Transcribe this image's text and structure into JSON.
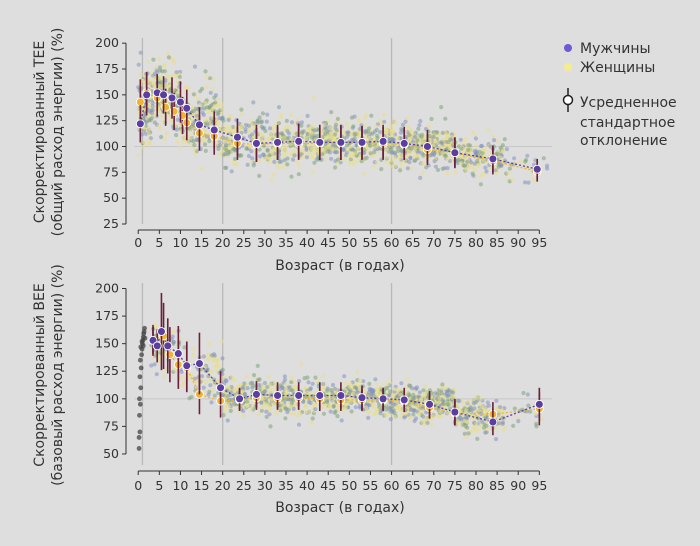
{
  "legend": {
    "men": "Мужчины",
    "women": "Женщины",
    "mean_sd_line1": "Усредненное",
    "mean_sd_line2": "стандартное",
    "mean_sd_line3": "отклонение"
  },
  "colors": {
    "men_dot": "#6b5bd6",
    "women_dot": "#f5ec8c",
    "men_mean_fill": "#5a3fa0",
    "women_mean_fill": "#f2b233",
    "error_bar": "#6a1f3a",
    "men_scatter": "#8494c0",
    "women_scatter": "#e9df8a",
    "mixed_scatter": "#7fa27a",
    "infant_scatter": "#444444",
    "grid_vertical": "#b9b9b9",
    "reference_line": "#c8c8c8"
  },
  "chart_data": [
    {
      "type": "scatter",
      "ylabel_line1": "Скорректированный TEE",
      "ylabel_line2": "(общий расход энергии) (%)",
      "xlabel": "Возраст (в годах)",
      "xlim": [
        -1,
        98
      ],
      "ylim": [
        25,
        205
      ],
      "xticks": [
        0,
        5,
        10,
        15,
        20,
        25,
        30,
        35,
        40,
        45,
        50,
        55,
        60,
        65,
        70,
        75,
        80,
        85,
        90,
        95
      ],
      "yticks": [
        25,
        50,
        75,
        100,
        125,
        150,
        175,
        200
      ],
      "vlines": [
        1,
        20,
        60
      ],
      "hline": 100,
      "men_means": [
        {
          "x": 0.5,
          "y": 122,
          "sd": 18
        },
        {
          "x": 2,
          "y": 150,
          "sd": 20
        },
        {
          "x": 4.5,
          "y": 152,
          "sd": 18
        },
        {
          "x": 6,
          "y": 150,
          "sd": 18
        },
        {
          "x": 8,
          "y": 147,
          "sd": 20
        },
        {
          "x": 10,
          "y": 143,
          "sd": 20
        },
        {
          "x": 11.5,
          "y": 137,
          "sd": 18
        },
        {
          "x": 14.5,
          "y": 121,
          "sd": 17
        },
        {
          "x": 18,
          "y": 116,
          "sd": 18
        },
        {
          "x": 23.5,
          "y": 109,
          "sd": 18
        },
        {
          "x": 28,
          "y": 103,
          "sd": 18
        },
        {
          "x": 33,
          "y": 104,
          "sd": 17
        },
        {
          "x": 38,
          "y": 105,
          "sd": 17
        },
        {
          "x": 43,
          "y": 104,
          "sd": 17
        },
        {
          "x": 48,
          "y": 104,
          "sd": 17
        },
        {
          "x": 53,
          "y": 104,
          "sd": 16
        },
        {
          "x": 58,
          "y": 105,
          "sd": 16
        },
        {
          "x": 63,
          "y": 103,
          "sd": 16
        },
        {
          "x": 68.5,
          "y": 100,
          "sd": 16
        },
        {
          "x": 75,
          "y": 94,
          "sd": 15
        },
        {
          "x": 84,
          "y": 88,
          "sd": 13
        },
        {
          "x": 94.5,
          "y": 78,
          "sd": 10
        }
      ],
      "women_means": [
        {
          "x": 0.5,
          "y": 143,
          "sd": 22
        },
        {
          "x": 2,
          "y": 152,
          "sd": 20
        },
        {
          "x": 4.5,
          "y": 147,
          "sd": 18
        },
        {
          "x": 6.5,
          "y": 138,
          "sd": 18
        },
        {
          "x": 8.5,
          "y": 134,
          "sd": 18
        },
        {
          "x": 10.5,
          "y": 130,
          "sd": 18
        },
        {
          "x": 11.5,
          "y": 123,
          "sd": 17
        },
        {
          "x": 14.5,
          "y": 113,
          "sd": 17
        },
        {
          "x": 18,
          "y": 110,
          "sd": 18
        },
        {
          "x": 23.5,
          "y": 103,
          "sd": 16
        },
        {
          "x": 28,
          "y": 102,
          "sd": 16
        },
        {
          "x": 33,
          "y": 103,
          "sd": 16
        },
        {
          "x": 38,
          "y": 103,
          "sd": 16
        },
        {
          "x": 43,
          "y": 103,
          "sd": 16
        },
        {
          "x": 48,
          "y": 103,
          "sd": 16
        },
        {
          "x": 53,
          "y": 103,
          "sd": 16
        },
        {
          "x": 58,
          "y": 103,
          "sd": 16
        },
        {
          "x": 63,
          "y": 102,
          "sd": 15
        },
        {
          "x": 68.5,
          "y": 97,
          "sd": 15
        },
        {
          "x": 75,
          "y": 94,
          "sd": 14
        },
        {
          "x": 84,
          "y": 86,
          "sd": 13
        },
        {
          "x": 94.5,
          "y": 76,
          "sd": 10
        }
      ],
      "point_cloud": [
        {
          "x0": 0,
          "x1": 3,
          "y_center": 140,
          "y_spread": 35,
          "density": 120
        },
        {
          "x0": 3,
          "x1": 10,
          "y_center": 148,
          "y_spread": 30,
          "density": 220
        },
        {
          "x0": 10,
          "x1": 20,
          "y_center": 125,
          "y_spread": 30,
          "density": 260
        },
        {
          "x0": 20,
          "x1": 40,
          "y_center": 105,
          "y_spread": 25,
          "density": 340
        },
        {
          "x0": 40,
          "x1": 60,
          "y_center": 104,
          "y_spread": 22,
          "density": 420
        },
        {
          "x0": 60,
          "x1": 75,
          "y_center": 100,
          "y_spread": 20,
          "density": 360
        },
        {
          "x0": 75,
          "x1": 87,
          "y_center": 90,
          "y_spread": 18,
          "density": 180
        },
        {
          "x0": 87,
          "x1": 97,
          "y_center": 78,
          "y_spread": 14,
          "density": 30
        }
      ]
    },
    {
      "type": "scatter",
      "ylabel_line1": "Скорректированный BEE",
      "ylabel_line2": "(базовый расход энергии) (%)",
      "xlabel": "Возраст (в годах)",
      "xlim": [
        -1,
        98
      ],
      "ylim": [
        40,
        205
      ],
      "xticks": [
        0,
        5,
        10,
        15,
        20,
        25,
        30,
        35,
        40,
        45,
        50,
        55,
        60,
        65,
        70,
        75,
        80,
        85,
        90,
        95
      ],
      "yticks": [
        50,
        75,
        100,
        125,
        150,
        175,
        200
      ],
      "vlines": [
        1,
        20,
        60
      ],
      "hline": 100,
      "infant_points": [
        {
          "x": 0.2,
          "y": 55
        },
        {
          "x": 0.4,
          "y": 70
        },
        {
          "x": 0.3,
          "y": 85
        },
        {
          "x": 0.5,
          "y": 95
        },
        {
          "x": 0.6,
          "y": 110
        },
        {
          "x": 0.4,
          "y": 120
        },
        {
          "x": 0.7,
          "y": 128
        },
        {
          "x": 0.5,
          "y": 135
        },
        {
          "x": 0.8,
          "y": 140
        },
        {
          "x": 0.9,
          "y": 145
        },
        {
          "x": 1.0,
          "y": 150
        },
        {
          "x": 1.1,
          "y": 153
        },
        {
          "x": 1.2,
          "y": 156
        },
        {
          "x": 1.3,
          "y": 159
        },
        {
          "x": 1.4,
          "y": 161
        },
        {
          "x": 1.5,
          "y": 164
        },
        {
          "x": 0.6,
          "y": 147
        },
        {
          "x": 0.9,
          "y": 152
        },
        {
          "x": 1.2,
          "y": 148
        },
        {
          "x": 1.6,
          "y": 155
        },
        {
          "x": 0.3,
          "y": 100
        },
        {
          "x": 0.2,
          "y": 65
        }
      ],
      "men_means": [
        {
          "x": 3.5,
          "y": 153,
          "sd": 14
        },
        {
          "x": 4.5,
          "y": 148,
          "sd": 15
        },
        {
          "x": 5.5,
          "y": 161,
          "sd": 35
        },
        {
          "x": 7,
          "y": 148,
          "sd": 25
        },
        {
          "x": 9.5,
          "y": 141,
          "sd": 25
        },
        {
          "x": 11.5,
          "y": 130,
          "sd": 22
        },
        {
          "x": 14.5,
          "y": 132,
          "sd": 28
        },
        {
          "x": 19.5,
          "y": 110,
          "sd": 15
        },
        {
          "x": 24,
          "y": 100,
          "sd": 10
        },
        {
          "x": 28,
          "y": 104,
          "sd": 12
        },
        {
          "x": 33,
          "y": 103,
          "sd": 12
        },
        {
          "x": 38,
          "y": 103,
          "sd": 12
        },
        {
          "x": 43,
          "y": 103,
          "sd": 12
        },
        {
          "x": 48,
          "y": 103,
          "sd": 12
        },
        {
          "x": 53,
          "y": 101,
          "sd": 11
        },
        {
          "x": 58,
          "y": 100,
          "sd": 10
        },
        {
          "x": 63,
          "y": 99,
          "sd": 11
        },
        {
          "x": 69,
          "y": 95,
          "sd": 12
        },
        {
          "x": 75,
          "y": 88,
          "sd": 12
        },
        {
          "x": 84,
          "y": 79,
          "sd": 12
        },
        {
          "x": 95,
          "y": 95,
          "sd": 15
        }
      ],
      "women_means": [
        {
          "x": 3.5,
          "y": 153,
          "sd": 12
        },
        {
          "x": 6,
          "y": 157,
          "sd": 30
        },
        {
          "x": 7.5,
          "y": 140,
          "sd": 25
        },
        {
          "x": 9.5,
          "y": 131,
          "sd": 22
        },
        {
          "x": 11.5,
          "y": 128,
          "sd": 22
        },
        {
          "x": 14.5,
          "y": 104,
          "sd": 18
        },
        {
          "x": 19.5,
          "y": 98,
          "sd": 15
        },
        {
          "x": 24,
          "y": 99,
          "sd": 10
        },
        {
          "x": 28,
          "y": 101,
          "sd": 11
        },
        {
          "x": 33,
          "y": 101,
          "sd": 11
        },
        {
          "x": 38,
          "y": 101,
          "sd": 11
        },
        {
          "x": 43,
          "y": 100,
          "sd": 11
        },
        {
          "x": 48,
          "y": 99,
          "sd": 10
        },
        {
          "x": 53,
          "y": 99,
          "sd": 10
        },
        {
          "x": 58,
          "y": 99,
          "sd": 10
        },
        {
          "x": 63,
          "y": 98,
          "sd": 10
        },
        {
          "x": 69,
          "y": 92,
          "sd": 10
        },
        {
          "x": 75,
          "y": 87,
          "sd": 11
        },
        {
          "x": 84,
          "y": 86,
          "sd": 11
        },
        {
          "x": 95,
          "y": 91,
          "sd": 15
        }
      ],
      "point_cloud": [
        {
          "x0": 3,
          "x1": 10,
          "y_center": 148,
          "y_spread": 25,
          "density": 60
        },
        {
          "x0": 10,
          "x1": 20,
          "y_center": 120,
          "y_spread": 25,
          "density": 90
        },
        {
          "x0": 20,
          "x1": 40,
          "y_center": 102,
          "y_spread": 18,
          "density": 340
        },
        {
          "x0": 40,
          "x1": 60,
          "y_center": 101,
          "y_spread": 16,
          "density": 380
        },
        {
          "x0": 60,
          "x1": 75,
          "y_center": 96,
          "y_spread": 15,
          "density": 330
        },
        {
          "x0": 75,
          "x1": 87,
          "y_center": 85,
          "y_spread": 14,
          "density": 200
        },
        {
          "x0": 87,
          "x1": 97,
          "y_center": 90,
          "y_spread": 12,
          "density": 20
        }
      ]
    }
  ]
}
